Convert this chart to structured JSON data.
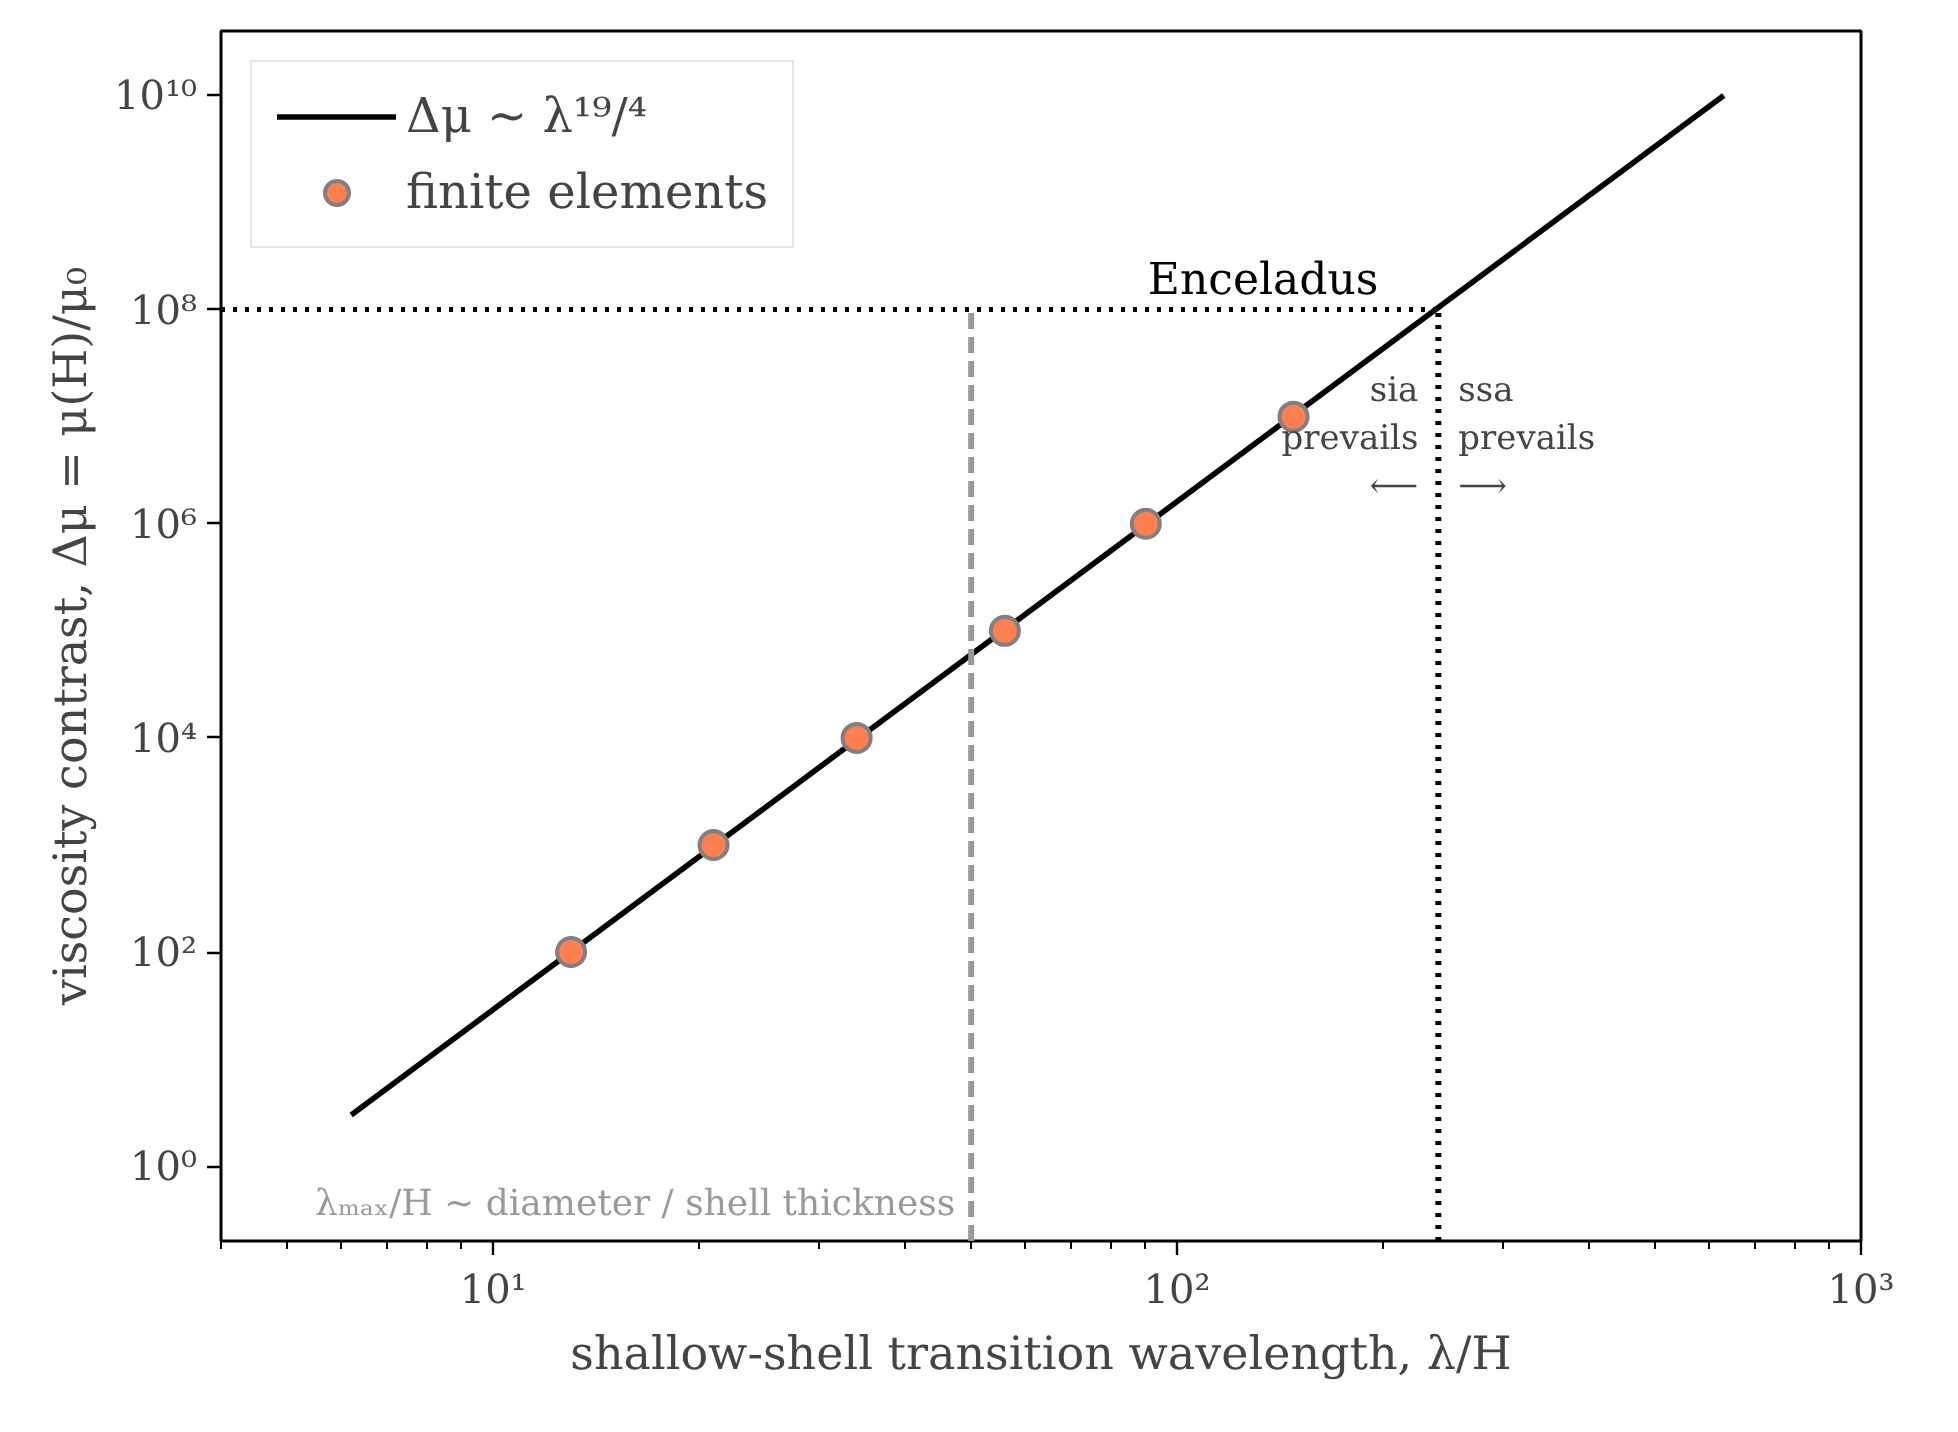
{
  "chart_data": {
    "type": "line",
    "xlabel": "shallow-shell transition wavelength, λ/H",
    "ylabel": "viscosity contrast, Δμ = μ(H)/μ₀",
    "log": "xy",
    "xlim": [
      4,
      1000
    ],
    "ylim": [
      0.2,
      40000000000
    ],
    "xticks": [
      {
        "value": 10,
        "label": "10¹"
      },
      {
        "value": 100,
        "label": "10²"
      },
      {
        "value": 1000,
        "label": "10³"
      }
    ],
    "yticks": [
      {
        "value": 1,
        "label": "10⁰"
      },
      {
        "value": 100,
        "label": "10²"
      },
      {
        "value": 10000,
        "label": "10⁴"
      },
      {
        "value": 1000000,
        "label": "10⁶"
      },
      {
        "value": 100000000,
        "label": "10⁸"
      },
      {
        "value": 10000000000,
        "label": "10¹⁰"
      }
    ],
    "grid": false,
    "legend": "top left",
    "series": [
      {
        "name": "Δμ ∼ λ¹⁹/⁴",
        "color": "#000000",
        "line_style": "solid",
        "marker": "none",
        "x": [
          6.2,
          630
        ],
        "values": [
          3,
          10000000000
        ]
      },
      {
        "name": "finite elements",
        "type": "scatter",
        "color": "#ff7f50",
        "marker": "circle",
        "x": [
          13,
          21,
          34,
          56,
          90,
          148
        ],
        "values": [
          100,
          1000,
          10000,
          100000,
          1000000,
          10000000
        ]
      }
    ],
    "ref_lines": [
      {
        "axis": "y",
        "value": 100000000,
        "label": "Enceladus",
        "color": "#000000",
        "line_style": "dotted"
      },
      {
        "axis": "x",
        "value": 241,
        "label": null,
        "color": "#000000",
        "line_style": "dotted"
      },
      {
        "axis": "x",
        "value": 50,
        "label": "λₘₐₓ/H ∼ diameter / shell thickness",
        "color": "#999999",
        "line_style": "dashed"
      }
    ],
    "annotations": [
      "sia\nprevails\n⟵",
      "ssa\nprevails\n⟶"
    ]
  }
}
